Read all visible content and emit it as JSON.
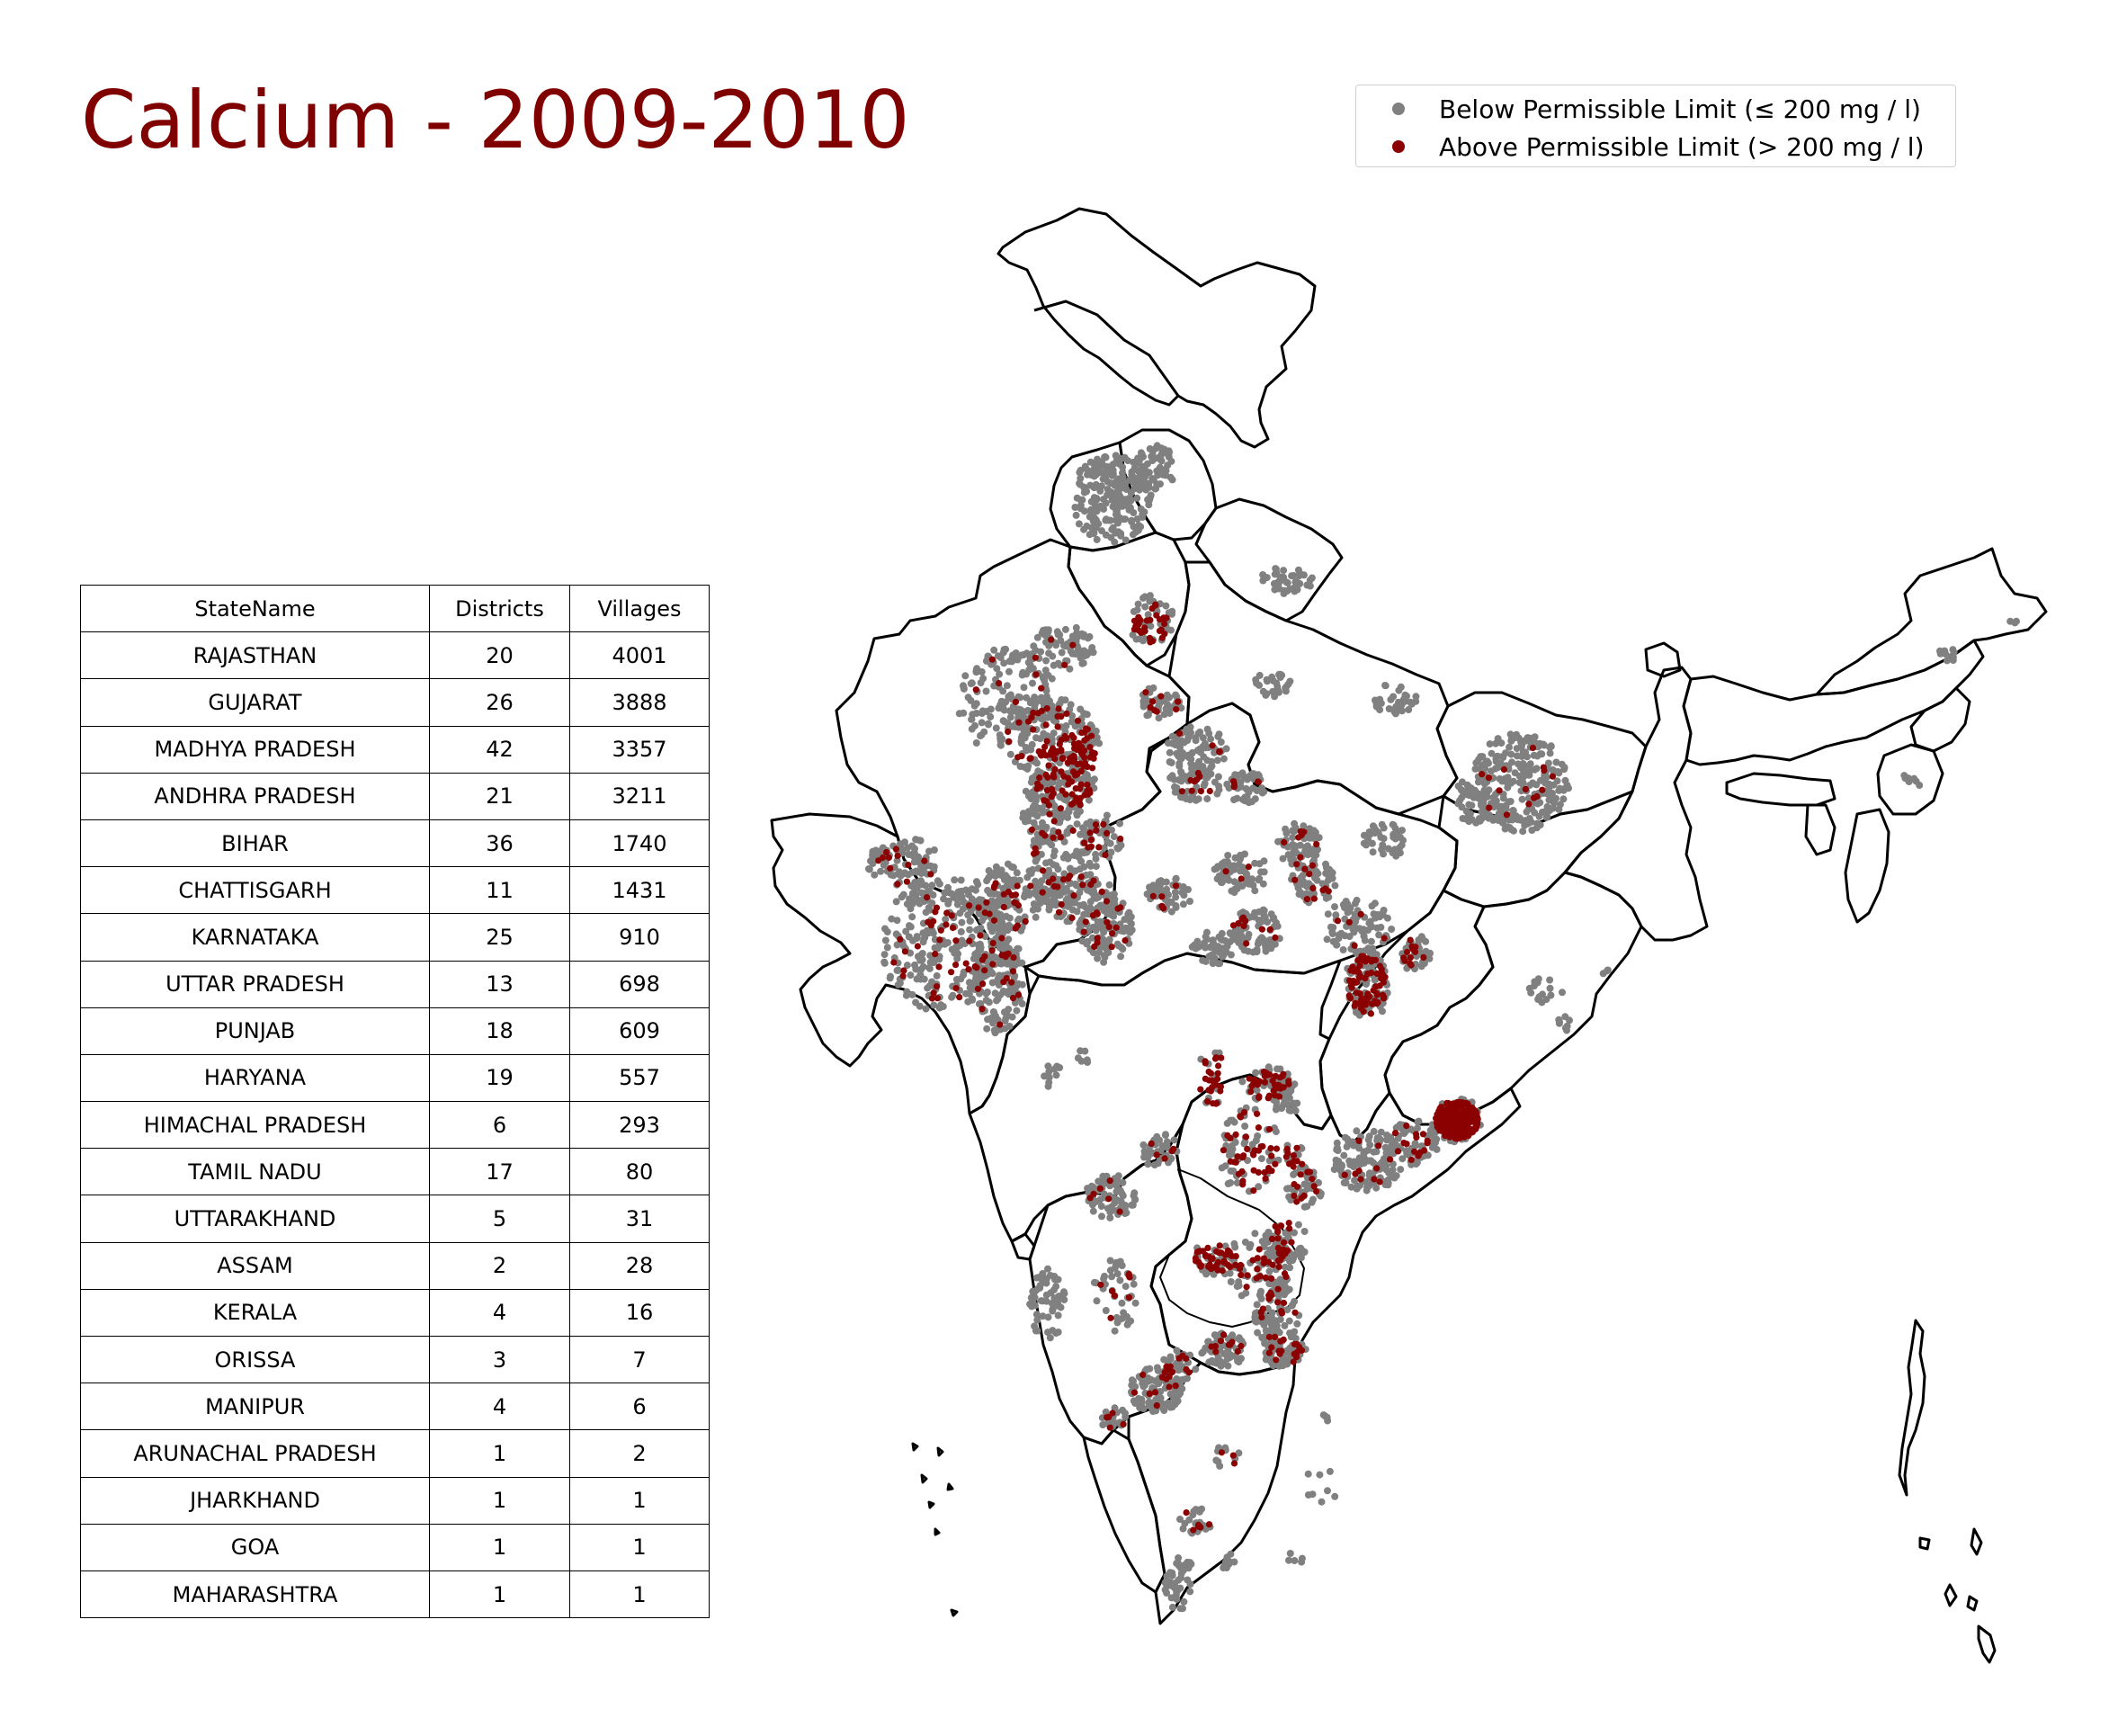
{
  "title": "Calcium - 2009-2010",
  "colors": {
    "title": "#800000",
    "below_marker": "#808080",
    "above_marker": "#8b0000",
    "boundary": "#000000"
  },
  "legend": {
    "placement": "top-right",
    "items": [
      {
        "label": "Below Permissible Limit (≤ 200 mg / l)",
        "color": "#808080"
      },
      {
        "label": "Above Permissible Limit (> 200 mg / l)",
        "color": "#8b0000"
      }
    ]
  },
  "table": {
    "headers": [
      "StateName",
      "Districts",
      "Villages"
    ],
    "rows": [
      [
        "RAJASTHAN",
        "20",
        "4001"
      ],
      [
        "GUJARAT",
        "26",
        "3888"
      ],
      [
        "MADHYA PRADESH",
        "42",
        "3357"
      ],
      [
        "ANDHRA PRADESH",
        "21",
        "3211"
      ],
      [
        "BIHAR",
        "36",
        "1740"
      ],
      [
        "CHATTISGARH",
        "11",
        "1431"
      ],
      [
        "KARNATAKA",
        "25",
        "910"
      ],
      [
        "UTTAR PRADESH",
        "13",
        "698"
      ],
      [
        "PUNJAB",
        "18",
        "609"
      ],
      [
        "HARYANA",
        "19",
        "557"
      ],
      [
        "HIMACHAL PRADESH",
        "6",
        "293"
      ],
      [
        "TAMIL NADU",
        "17",
        "80"
      ],
      [
        "UTTARAKHAND",
        "5",
        "31"
      ],
      [
        "ASSAM",
        "2",
        "28"
      ],
      [
        "KERALA",
        "4",
        "16"
      ],
      [
        "ORISSA",
        "3",
        "7"
      ],
      [
        "MANIPUR",
        "4",
        "6"
      ],
      [
        "ARUNACHAL PRADESH",
        "1",
        "2"
      ],
      [
        "JHARKHAND",
        "1",
        "1"
      ],
      [
        "GOA",
        "1",
        "1"
      ],
      [
        "MAHARASHTRA",
        "1",
        "1"
      ]
    ]
  }
}
